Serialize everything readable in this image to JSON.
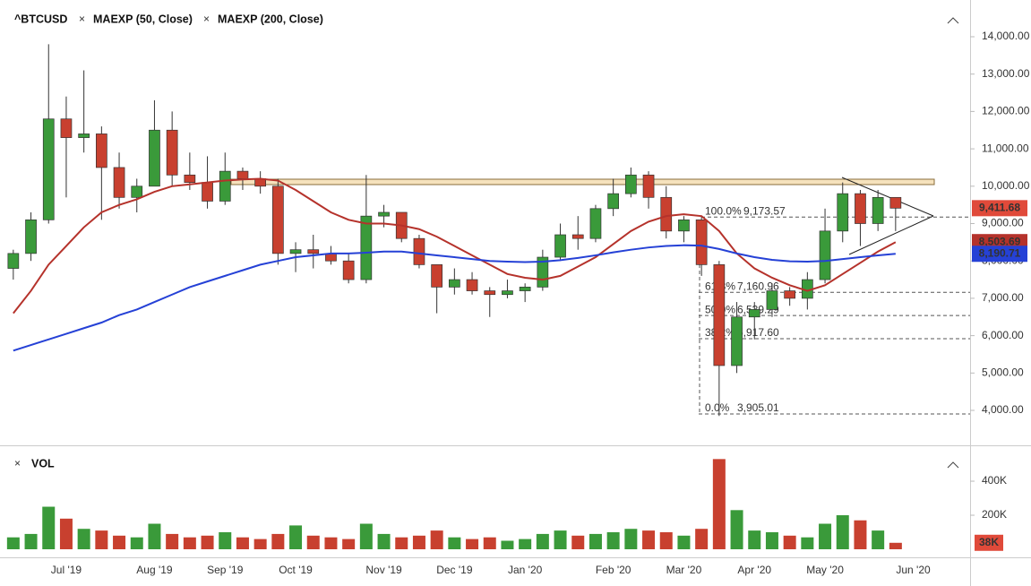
{
  "chart_data": [
    {
      "type": "candlestick",
      "title": "^BTCUSD",
      "categories": [
        null,
        null,
        null,
        "Jul '19",
        null,
        null,
        null,
        null,
        "Aug '19",
        null,
        null,
        null,
        "Sep '19",
        null,
        null,
        null,
        "Oct '19",
        null,
        null,
        null,
        null,
        "Nov '19",
        null,
        null,
        null,
        "Dec '19",
        null,
        null,
        null,
        "Jan '20",
        null,
        null,
        null,
        null,
        "Feb '20",
        null,
        null,
        null,
        "Mar '20",
        null,
        null,
        null,
        "Apr '20",
        null,
        null,
        null,
        "May '20",
        null,
        null,
        null,
        null,
        "Jun '20"
      ],
      "open": [
        7800,
        8200,
        9100,
        11800,
        11300,
        11400,
        10500,
        9700,
        10000,
        11500,
        10300,
        10100,
        9600,
        10400,
        10200,
        10000,
        8200,
        8300,
        8200,
        8000,
        7500,
        9200,
        9300,
        8600,
        7900,
        7300,
        7500,
        7200,
        7100,
        7200,
        7300,
        8100,
        8700,
        8600,
        9400,
        9800,
        10300,
        9700,
        8800,
        9100,
        7900,
        5200,
        6500,
        6700,
        7200,
        7000,
        7500,
        8800,
        9800,
        9000,
        9700,
        null
      ],
      "high": [
        8300,
        9300,
        13800,
        12400,
        13100,
        11600,
        10900,
        10200,
        12300,
        12000,
        10900,
        10800,
        10900,
        10500,
        10400,
        10200,
        8500,
        8700,
        8400,
        8200,
        10300,
        9500,
        9300,
        8700,
        7900,
        7800,
        7700,
        7300,
        7500,
        7400,
        8300,
        9000,
        9200,
        9500,
        10200,
        10500,
        10400,
        10000,
        9200,
        9200,
        8000,
        6900,
        6900,
        7400,
        7300,
        7700,
        9400,
        10100,
        9900,
        9900,
        9600,
        null
      ],
      "low": [
        7500,
        8000,
        9000,
        9700,
        10900,
        9100,
        9400,
        9300,
        10000,
        10000,
        9900,
        9400,
        9500,
        9900,
        9800,
        7900,
        7700,
        7800,
        7900,
        7400,
        7400,
        8900,
        8500,
        7800,
        6600,
        7100,
        7100,
        6500,
        7000,
        6900,
        7200,
        8000,
        8300,
        8500,
        9200,
        9700,
        9400,
        8600,
        8500,
        7600,
        3850,
        5000,
        5900,
        6500,
        6800,
        6700,
        7400,
        8500,
        8400,
        8800,
        8800,
        null
      ],
      "close": [
        8200,
        9100,
        11800,
        11300,
        11400,
        10500,
        9700,
        10000,
        11500,
        10300,
        10100,
        9600,
        10400,
        10200,
        10000,
        8200,
        8300,
        8200,
        8000,
        7500,
        9200,
        9300,
        8600,
        7900,
        7300,
        7500,
        7200,
        7100,
        7200,
        7300,
        8100,
        8700,
        8600,
        9400,
        9800,
        10300,
        9700,
        8800,
        9100,
        7900,
        5200,
        6500,
        6700,
        7200,
        7000,
        7500,
        8800,
        9800,
        9000,
        9700,
        9411.68,
        null
      ],
      "up_color": "#3a9a3a",
      "down_color": "#c8402f",
      "series": [
        {
          "name": "MAEXP (50, Close)",
          "color": "#b5322b",
          "values": [
            6600,
            7200,
            7900,
            8400,
            8900,
            9300,
            9500,
            9650,
            9850,
            10000,
            10050,
            10100,
            10150,
            10180,
            10200,
            10150,
            9900,
            9600,
            9300,
            9100,
            9000,
            9000,
            8950,
            8850,
            8650,
            8400,
            8150,
            7900,
            7650,
            7550,
            7500,
            7600,
            7850,
            8100,
            8450,
            8800,
            9050,
            9200,
            9250,
            9200,
            8800,
            8200,
            7800,
            7550,
            7350,
            7200,
            7350,
            7650,
            7950,
            8250,
            8503.69,
            null
          ]
        },
        {
          "name": "MAEXP (200, Close)",
          "color": "#2541d6",
          "values": [
            5600,
            5750,
            5900,
            6050,
            6200,
            6350,
            6550,
            6700,
            6900,
            7100,
            7300,
            7450,
            7600,
            7750,
            7900,
            8000,
            8100,
            8150,
            8200,
            8200,
            8220,
            8250,
            8250,
            8200,
            8150,
            8100,
            8050,
            8000,
            7980,
            7970,
            7980,
            8020,
            8080,
            8150,
            8230,
            8300,
            8360,
            8400,
            8420,
            8410,
            8320,
            8200,
            8100,
            8030,
            7990,
            7980,
            8000,
            8050,
            8100,
            8150,
            8190.71,
            null
          ]
        }
      ],
      "ylim": [
        3065,
        14983
      ],
      "yticks": [
        {
          "value": 4000,
          "label": "4,000.00"
        },
        {
          "value": 5000,
          "label": "5,000.00"
        },
        {
          "value": 6000,
          "label": "6,000.00"
        },
        {
          "value": 7000,
          "label": "7,000.00"
        },
        {
          "value": 8000,
          "label": "8,000.00"
        },
        {
          "value": 9000,
          "label": "9,000.00"
        },
        {
          "value": 10000,
          "label": "10,000.00"
        },
        {
          "value": 11000,
          "label": "11,000.00"
        },
        {
          "value": 12000,
          "label": "12,000.00"
        },
        {
          "value": 13000,
          "label": "13,000.00"
        },
        {
          "value": 14000,
          "label": "14,000.00"
        }
      ],
      "price_labels": [
        {
          "value": 9411.68,
          "label": "9,411.68",
          "color": "#e04a3a"
        },
        {
          "value": 8503.69,
          "label": "8,503.69",
          "color": "#b5322b"
        },
        {
          "value": 8190.71,
          "label": "8,190.71",
          "color": "#2541d6"
        }
      ],
      "fib_levels": [
        {
          "label": "100.0%",
          "value": 9173.57,
          "value_label": "9,173.57"
        },
        {
          "label": "61.8%",
          "value": 7160.96,
          "value_label": "7,160.96"
        },
        {
          "label": "50.0%",
          "value": 6539.29,
          "value_label": "6,539.29"
        },
        {
          "label": "38.2%",
          "value": 5917.6,
          "value_label": "5,917.60"
        },
        {
          "label": "0.0%",
          "value": 3905.01,
          "value_label": "3,905.01"
        }
      ]
    },
    {
      "type": "bar",
      "title": "VOL",
      "values": [
        70000,
        90000,
        250000,
        180000,
        120000,
        110000,
        80000,
        70000,
        150000,
        90000,
        70000,
        80000,
        100000,
        70000,
        60000,
        90000,
        140000,
        80000,
        70000,
        60000,
        150000,
        90000,
        70000,
        80000,
        110000,
        70000,
        60000,
        70000,
        50000,
        60000,
        90000,
        110000,
        80000,
        90000,
        100000,
        120000,
        110000,
        100000,
        80000,
        120000,
        530000,
        230000,
        110000,
        100000,
        80000,
        70000,
        150000,
        200000,
        170000,
        110000,
        38000,
        null
      ],
      "ylim": [
        0,
        595000
      ],
      "yticks": [
        {
          "value": 200000,
          "label": "200K"
        },
        {
          "value": 400000,
          "label": "400K"
        }
      ],
      "last_label": {
        "value": 38000,
        "label": "38K",
        "color": "#e04a3a"
      }
    }
  ]
}
